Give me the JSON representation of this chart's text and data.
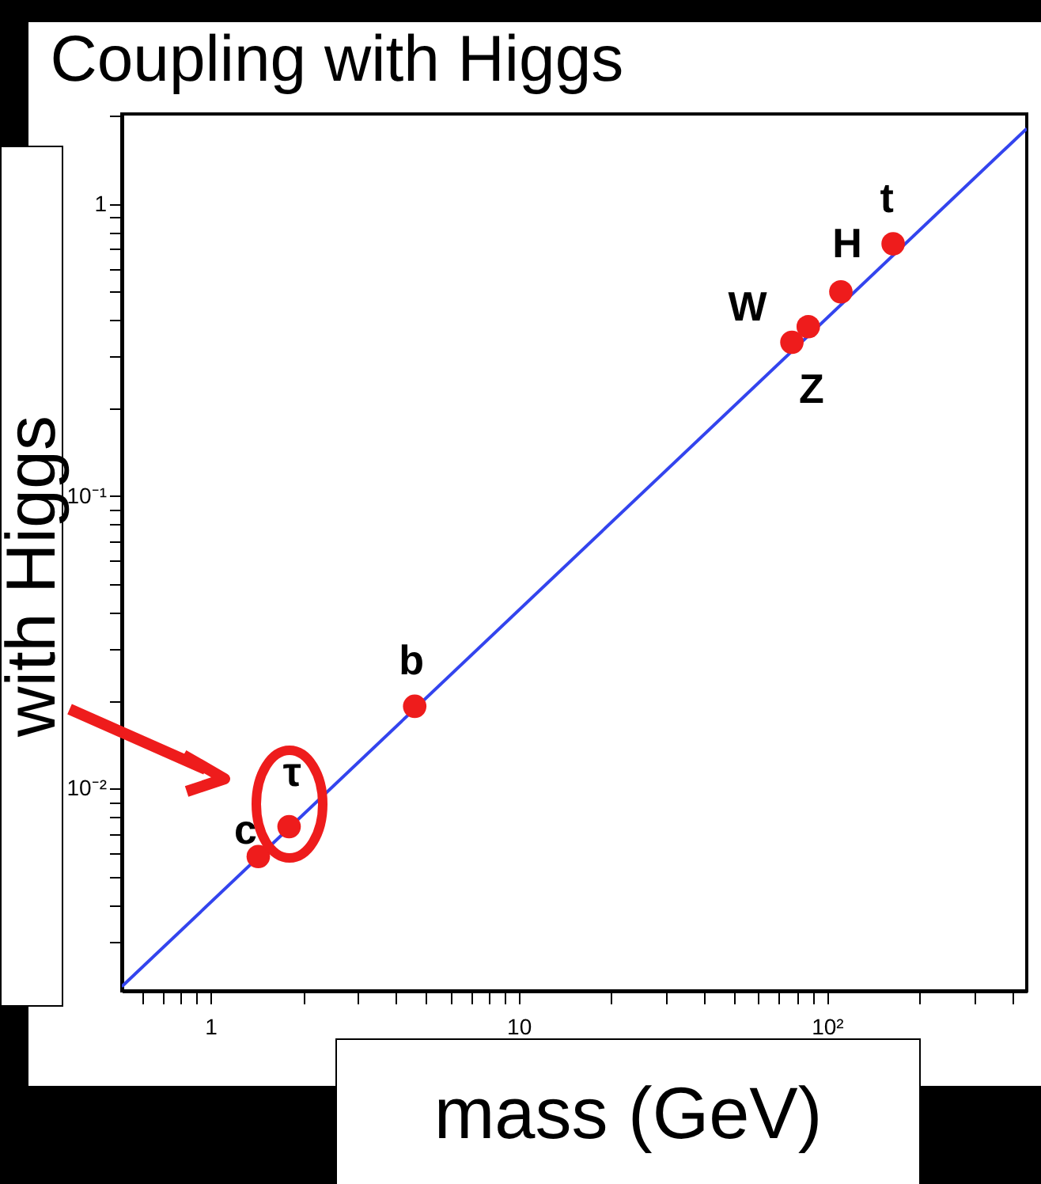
{
  "chart_data": {
    "type": "scatter",
    "title": "Coupling with Higgs",
    "xlabel": "mass (GeV)",
    "ylabel": "with Higgs",
    "log": "xy",
    "grid": false,
    "marker": "circle",
    "xlim": [
      0.516,
      445
    ],
    "ylim": [
      0.00203,
      2.03
    ],
    "xticks": [
      {
        "value": 0.6,
        "label": null
      },
      {
        "value": 0.7,
        "label": null
      },
      {
        "value": 0.8,
        "label": null
      },
      {
        "value": 0.9,
        "label": null
      },
      1,
      {
        "value": 2,
        "label": null
      },
      {
        "value": 3,
        "label": null
      },
      {
        "value": 4,
        "label": null
      },
      {
        "value": 5,
        "label": null
      },
      {
        "value": 6,
        "label": null
      },
      {
        "value": 7,
        "label": null
      },
      {
        "value": 8,
        "label": null
      },
      {
        "value": 9,
        "label": null
      },
      10,
      {
        "value": 20,
        "label": null
      },
      {
        "value": 30,
        "label": null
      },
      {
        "value": 40,
        "label": null
      },
      {
        "value": 50,
        "label": null
      },
      {
        "value": 60,
        "label": null
      },
      {
        "value": 70,
        "label": null
      },
      {
        "value": 80,
        "label": null
      },
      {
        "value": 90,
        "label": null
      },
      {
        "value": 100,
        "label": "10²"
      },
      {
        "value": 200,
        "label": null
      },
      {
        "value": 300,
        "label": null
      },
      {
        "value": 400,
        "label": null
      }
    ],
    "yticks": [
      {
        "value": 0.003,
        "label": null
      },
      {
        "value": 0.004,
        "label": null
      },
      {
        "value": 0.005,
        "label": null
      },
      {
        "value": 0.006,
        "label": null
      },
      {
        "value": 0.007,
        "label": null
      },
      {
        "value": 0.008,
        "label": null
      },
      {
        "value": 0.009,
        "label": null
      },
      {
        "value": 0.01,
        "label": "10⁻²"
      },
      {
        "value": 0.02,
        "label": null
      },
      {
        "value": 0.03,
        "label": null
      },
      {
        "value": 0.04,
        "label": null
      },
      {
        "value": 0.05,
        "label": null
      },
      {
        "value": 0.06,
        "label": null
      },
      {
        "value": 0.07,
        "label": null
      },
      {
        "value": 0.08,
        "label": null
      },
      {
        "value": 0.09,
        "label": null
      },
      {
        "value": 0.1,
        "label": "10⁻¹"
      },
      {
        "value": 0.2,
        "label": null
      },
      {
        "value": 0.3,
        "label": null
      },
      {
        "value": 0.4,
        "label": null
      },
      {
        "value": 0.5,
        "label": null
      },
      {
        "value": 0.6,
        "label": null
      },
      {
        "value": 0.7,
        "label": null
      },
      {
        "value": 0.8,
        "label": null
      },
      {
        "value": 0.9,
        "label": null
      },
      1,
      {
        "value": 2,
        "label": null
      }
    ],
    "series": [
      {
        "type": "line",
        "color": "#3344ee",
        "x": [
          0.516,
          445
        ],
        "values": [
          0.0021,
          1.81
        ],
        "line_style": "solid",
        "marker": "none"
      },
      {
        "color": "#ee1c1c",
        "x": [
          1.43,
          1.8,
          4.6,
          77,
          87,
          111,
          164
        ],
        "values": [
          0.00585,
          0.0074,
          0.0191,
          0.336,
          0.38,
          0.5,
          0.73
        ]
      }
    ],
    "annotations": [
      {
        "text": "c",
        "x": 1.43,
        "y": 0.00585
      },
      {
        "text": "τ",
        "x": 1.8,
        "y": 0.0074
      },
      {
        "text": "b",
        "x": 4.6,
        "y": 0.0191
      },
      {
        "text": "W",
        "x": 77,
        "y": 0.336
      },
      {
        "text": "Z",
        "x": 87,
        "y": 0.38
      },
      {
        "text": "H",
        "x": 111,
        "y": 0.5
      },
      {
        "text": "t",
        "x": 164,
        "y": 0.73
      }
    ]
  }
}
